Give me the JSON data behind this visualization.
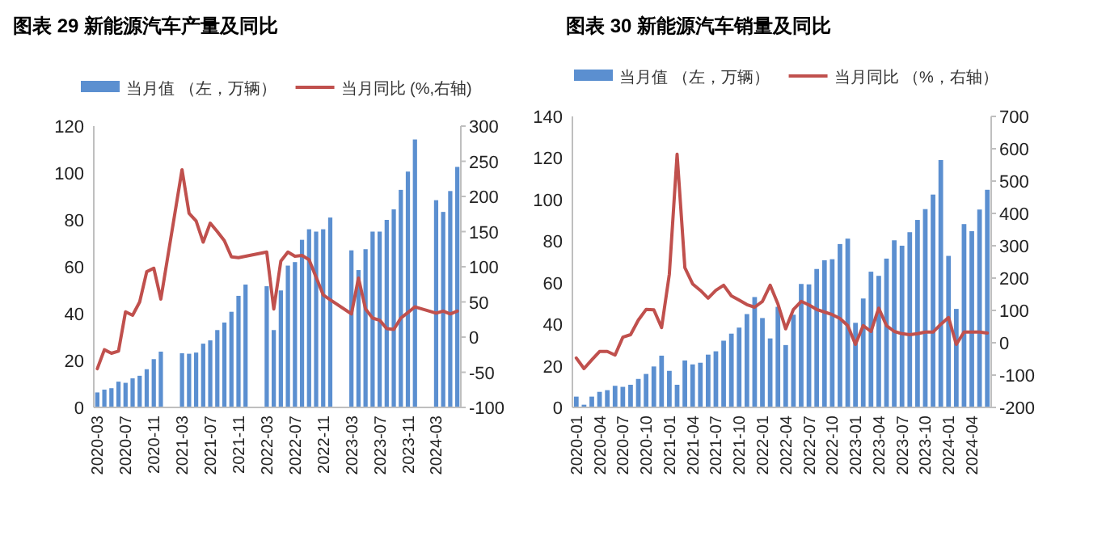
{
  "chart_data": [
    {
      "type": "bar",
      "title": "图表 29 新能源汽车产量及同比",
      "legend": "top",
      "categories": [
        "2020-03",
        null,
        null,
        null,
        "2020-07",
        null,
        null,
        null,
        "2020-11",
        null,
        null,
        null,
        "2021-03",
        null,
        null,
        null,
        "2021-07",
        null,
        null,
        null,
        "2021-11",
        null,
        null,
        null,
        "2022-03",
        null,
        null,
        null,
        "2022-07",
        null,
        null,
        null,
        "2022-11",
        null,
        null,
        null,
        "2023-03",
        null,
        null,
        null,
        "2023-07",
        null,
        null,
        null,
        "2023-11",
        null,
        null,
        null,
        "2024-03",
        null,
        null,
        null
      ],
      "ylim": [
        0,
        120
      ],
      "yticks": [
        0,
        20,
        40,
        60,
        80,
        100,
        120
      ],
      "y2lim": [
        -100,
        300
      ],
      "y2ticks": [
        -100,
        -50,
        0,
        50,
        100,
        150,
        200,
        250,
        300
      ],
      "series": [
        {
          "name": "当月值 （左，万辆）",
          "color": "#5b8fd0",
          "values": [
            6.4,
            7.6,
            8.2,
            11,
            10.5,
            12.4,
            13.5,
            16.3,
            20.6,
            23.8,
            null,
            null,
            23.1,
            22.9,
            23.4,
            27.2,
            28.6,
            33,
            36.2,
            40.8,
            47.6,
            52.4,
            null,
            null,
            51.7,
            33,
            49.9,
            60.5,
            62,
            71.5,
            76,
            75,
            76,
            81,
            null,
            null,
            67,
            58.6,
            67.5,
            75,
            75,
            80,
            84.5,
            92.8,
            100.6,
            114.3,
            null,
            null,
            88.4,
            83.4,
            92.3,
            102.6
          ]
        },
        {
          "name": "当月同比 (%,右轴)",
          "type": "line",
          "axis": "y2",
          "color": "#c0504d",
          "values": [
            -45,
            -18,
            -23,
            -20,
            36,
            31,
            50,
            93,
            98,
            54,
            null,
            null,
            238,
            176,
            165,
            135,
            162,
            150,
            137,
            114,
            113,
            115,
            null,
            null,
            121,
            40,
            108,
            121,
            115,
            116,
            110,
            85,
            60,
            53,
            null,
            null,
            33,
            84,
            40,
            27,
            24,
            12,
            11,
            27,
            35,
            43,
            null,
            null,
            34,
            37,
            33,
            37
          ]
        }
      ]
    },
    {
      "type": "bar",
      "title": "图表 30 新能源汽车销量及同比",
      "legend": "top",
      "categories": [
        "2020-01",
        null,
        null,
        "2020-04",
        null,
        null,
        "2020-07",
        null,
        null,
        "2020-10",
        null,
        null,
        "2021-01",
        null,
        null,
        "2021-04",
        null,
        null,
        "2021-07",
        null,
        null,
        "2021-10",
        null,
        null,
        "2022-01",
        null,
        null,
        "2022-04",
        null,
        null,
        "2022-07",
        null,
        null,
        "2022-10",
        null,
        null,
        "2023-01",
        null,
        null,
        "2023-04",
        null,
        null,
        "2023-07",
        null,
        null,
        "2023-10",
        null,
        null,
        "2024-01",
        null,
        null,
        "2024-04",
        null,
        null
      ],
      "ylim": [
        0,
        140
      ],
      "yticks": [
        0,
        20,
        40,
        60,
        80,
        100,
        120,
        140
      ],
      "y2lim": [
        -200,
        700
      ],
      "y2ticks": [
        -200,
        -100,
        0,
        100,
        200,
        300,
        400,
        500,
        600,
        700
      ],
      "series": [
        {
          "name": "当月值 （左，万辆）",
          "color": "#5b8fd0",
          "values": [
            5.2,
            1.3,
            5.2,
            7.5,
            8.3,
            10.4,
            9.9,
            10.9,
            13.7,
            16.1,
            19.7,
            24.9,
            17.6,
            10.9,
            22.6,
            20.7,
            21.5,
            25.4,
            27,
            32.1,
            35.5,
            38.4,
            44.9,
            53.1,
            43,
            33.2,
            48.4,
            30,
            44.6,
            59.4,
            59.2,
            66.6,
            70.8,
            71.3,
            78.6,
            81.2,
            40.7,
            52.4,
            65.3,
            63.3,
            71.6,
            80.4,
            77.8,
            84.3,
            90.2,
            95.4,
            102.4,
            119,
            72.9,
            47.4,
            88.2,
            84.8,
            95.2,
            104.7
          ]
        },
        {
          "name": "当月同比 （%，右轴）",
          "type": "line",
          "axis": "y2",
          "color": "#c0504d",
          "values": [
            -47,
            -80,
            -53,
            -27,
            -27,
            -38,
            17,
            25,
            70,
            103,
            102,
            47,
            212,
            583,
            232,
            182,
            162,
            138,
            162,
            178,
            145,
            132,
            118,
            110,
            128,
            178,
            120,
            43,
            103,
            128,
            117,
            103,
            95,
            87,
            75,
            53,
            -5,
            53,
            35,
            107,
            53,
            35,
            28,
            25,
            28,
            33,
            33,
            57,
            78,
            -5,
            33,
            33,
            33,
            30
          ]
        }
      ]
    }
  ]
}
